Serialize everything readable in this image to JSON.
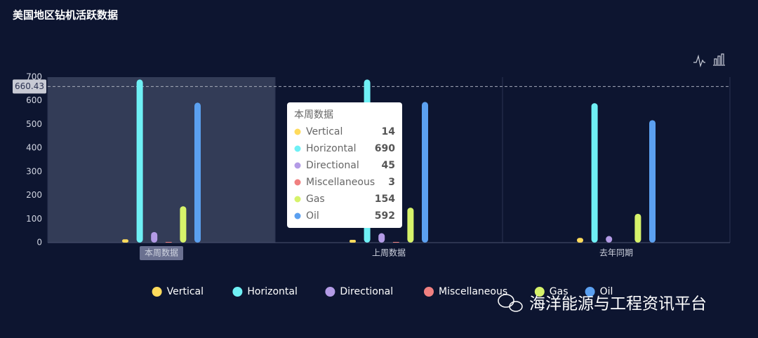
{
  "chart_data": {
    "type": "bar",
    "title": "美国地区钻机活跃数据",
    "categories": [
      "本周数据",
      "上周数据",
      "去年同期"
    ],
    "series": [
      {
        "name": "Vertical",
        "color": "#ffdb5c",
        "values": [
          14,
          12,
          20
        ]
      },
      {
        "name": "Horizontal",
        "color": "#6ff0f5",
        "values": [
          690,
          690,
          590
        ]
      },
      {
        "name": "Directional",
        "color": "#b39be6",
        "values": [
          45,
          40,
          28
        ]
      },
      {
        "name": "Miscellaneous",
        "color": "#f08080",
        "values": [
          3,
          3,
          0
        ]
      },
      {
        "name": "Gas",
        "color": "#d6f26a",
        "values": [
          154,
          148,
          122
        ]
      },
      {
        "name": "Oil",
        "color": "#5ba0f0",
        "values": [
          592,
          595,
          518
        ]
      }
    ],
    "ylim": [
      0,
      700
    ],
    "yticks": [
      0,
      100,
      200,
      300,
      400,
      500,
      600,
      700
    ],
    "pointer_value": 660.43,
    "tooltip_title": "本周数据",
    "watermark": "海洋能源与工程资讯平台"
  }
}
